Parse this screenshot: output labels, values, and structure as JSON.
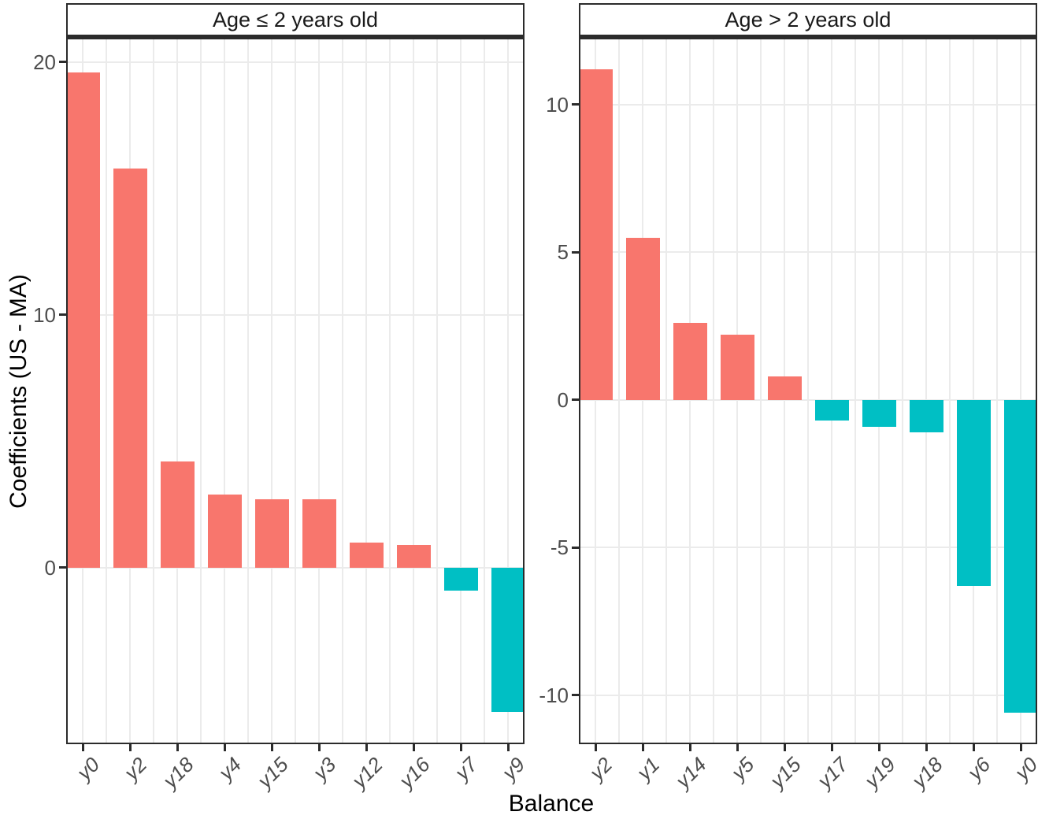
{
  "chart_data": {
    "type": "bar",
    "xlabel": "Balance",
    "ylabel": "Coefficients (US - MA)",
    "grid": "major horizontal at y ticks, vertical lines at category centers and midpoints, light gray on white",
    "legend_position": "none",
    "colors": {
      "positive": "#F8766D",
      "negative": "#00BFC4"
    },
    "bar_color_rule": "positive values salmon red, negative values teal",
    "facets": [
      {
        "title": "Age ≤ 2 years old",
        "categories": [
          "y0",
          "y2",
          "y18",
          "y4",
          "y15",
          "y3",
          "y12",
          "y16",
          "y7",
          "y9"
        ],
        "values": [
          19.6,
          15.8,
          4.2,
          2.9,
          2.7,
          2.7,
          1.0,
          0.9,
          -0.9,
          -5.7
        ],
        "yticks": [
          0,
          10,
          20
        ],
        "ylim": [
          -6.92,
          20.9
        ]
      },
      {
        "title": "Age > 2 years old",
        "categories": [
          "y2",
          "y1",
          "y14",
          "y5",
          "y15",
          "y17",
          "y19",
          "y18",
          "y6",
          "y0"
        ],
        "values": [
          11.2,
          5.5,
          2.6,
          2.2,
          0.8,
          -0.7,
          -0.9,
          -1.1,
          -6.3,
          -10.6
        ],
        "yticks": [
          -10,
          -5,
          0,
          5,
          10
        ],
        "ylim": [
          -11.6,
          12.21
        ]
      }
    ]
  }
}
